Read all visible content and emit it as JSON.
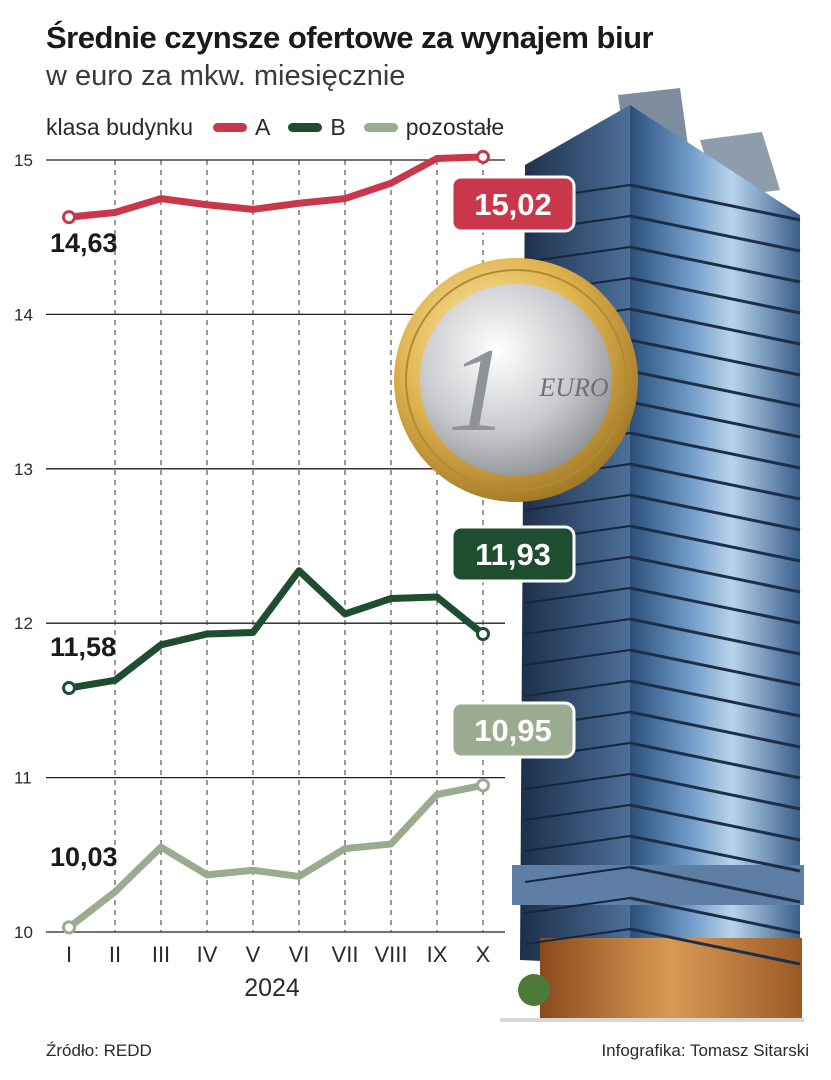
{
  "header": {
    "title": "Średnie czynsze ofertowe za wynajem biur",
    "subtitle": "w euro za mkw. miesięcznie"
  },
  "legend": {
    "title": "klasa budynku",
    "items": [
      {
        "label": "A",
        "color": "#c9384a"
      },
      {
        "label": "B",
        "color": "#1f4d30"
      },
      {
        "label": "pozostałe",
        "color": "#9aab8f"
      }
    ]
  },
  "chart_data": {
    "type": "line",
    "categories": [
      "I",
      "II",
      "III",
      "IV",
      "V",
      "VI",
      "VII",
      "VIII",
      "IX",
      "X"
    ],
    "xlabel": "2024",
    "ylabel": "",
    "ylim": [
      10,
      15
    ],
    "yticks": [
      "10",
      "11",
      "12",
      "13",
      "14",
      "15"
    ],
    "grid": {
      "horizontal": true,
      "vertical": "dashed"
    },
    "series": [
      {
        "name": "A",
        "color": "#c9384a",
        "values": [
          14.63,
          14.66,
          14.75,
          14.71,
          14.68,
          14.72,
          14.75,
          14.85,
          15.01,
          15.02
        ],
        "start_label": "14,63",
        "end_label": "15,02"
      },
      {
        "name": "B",
        "color": "#1f4d30",
        "values": [
          11.58,
          11.63,
          11.86,
          11.93,
          11.94,
          12.34,
          12.06,
          12.16,
          12.17,
          11.93
        ],
        "start_label": "11,58",
        "end_label": "11,93"
      },
      {
        "name": "pozostałe",
        "color": "#9aab8f",
        "values": [
          10.03,
          10.26,
          10.55,
          10.37,
          10.4,
          10.36,
          10.54,
          10.57,
          10.89,
          10.95
        ],
        "start_label": "10,03",
        "end_label": "10,95"
      }
    ]
  },
  "footer": {
    "source": "Źródło: REDD",
    "credit": "Infografika: Tomasz Sitarski"
  },
  "illustration": {
    "building": "office-tower-illustration",
    "coin": "euro-coin-illustration",
    "coin_text": "EURO",
    "coin_digit": "1"
  }
}
